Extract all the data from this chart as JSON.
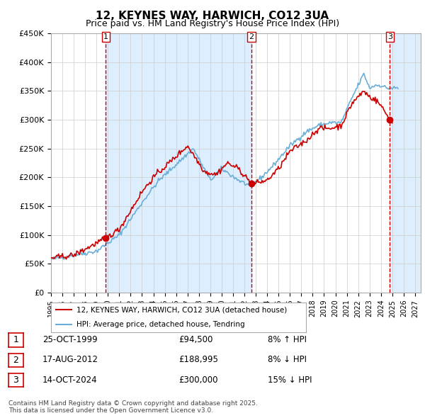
{
  "title": "12, KEYNES WAY, HARWICH, CO12 3UA",
  "subtitle": "Price paid vs. HM Land Registry's House Price Index (HPI)",
  "legend_line1": "12, KEYNES WAY, HARWICH, CO12 3UA (detached house)",
  "legend_line2": "HPI: Average price, detached house, Tendring",
  "footer": "Contains HM Land Registry data © Crown copyright and database right 2025.\nThis data is licensed under the Open Government Licence v3.0.",
  "transactions": [
    {
      "num": 1,
      "date": "25-OCT-1999",
      "price": 94500,
      "pct": "8%",
      "dir": "↑",
      "year": 1999.82
    },
    {
      "num": 2,
      "date": "17-AUG-2012",
      "price": 188995,
      "pct": "8%",
      "dir": "↓",
      "year": 2012.63
    },
    {
      "num": 3,
      "date": "14-OCT-2024",
      "price": 300000,
      "pct": "15%",
      "dir": "↓",
      "year": 2024.79
    }
  ],
  "hpi_color": "#6baed6",
  "price_color": "#cc0000",
  "bg_color": "#ffffff",
  "plot_bg_color": "#ffffff",
  "grid_color": "#cccccc",
  "shade_color": "#ddeeff",
  "vline_color": "#cc0000",
  "ylim": [
    0,
    450000
  ],
  "yticks": [
    0,
    50000,
    100000,
    150000,
    200000,
    250000,
    300000,
    350000,
    400000,
    450000
  ],
  "xlim_start": 1995.0,
  "xlim_end": 2027.5,
  "hpi_anchors": [
    [
      1995.0,
      58000
    ],
    [
      1999.0,
      72000
    ],
    [
      2001.0,
      100000
    ],
    [
      2003.5,
      170000
    ],
    [
      2004.5,
      195000
    ],
    [
      2007.5,
      250000
    ],
    [
      2009.0,
      195000
    ],
    [
      2010.0,
      215000
    ],
    [
      2011.5,
      195000
    ],
    [
      2012.5,
      185000
    ],
    [
      2013.5,
      200000
    ],
    [
      2014.5,
      220000
    ],
    [
      2016.0,
      255000
    ],
    [
      2017.5,
      280000
    ],
    [
      2018.5,
      290000
    ],
    [
      2019.5,
      295000
    ],
    [
      2020.5,
      295000
    ],
    [
      2021.5,
      340000
    ],
    [
      2022.5,
      380000
    ],
    [
      2023.0,
      355000
    ],
    [
      2023.5,
      360000
    ],
    [
      2024.0,
      360000
    ],
    [
      2024.5,
      355000
    ],
    [
      2025.0,
      355000
    ]
  ],
  "price_anchors": [
    [
      1995.0,
      60000
    ],
    [
      1997.0,
      65000
    ],
    [
      1999.82,
      94500
    ],
    [
      2001.0,
      110000
    ],
    [
      2003.0,
      175000
    ],
    [
      2004.0,
      200000
    ],
    [
      2007.0,
      255000
    ],
    [
      2008.5,
      210000
    ],
    [
      2009.5,
      205000
    ],
    [
      2010.5,
      225000
    ],
    [
      2011.5,
      215000
    ],
    [
      2012.63,
      188995
    ],
    [
      2013.0,
      190000
    ],
    [
      2014.0,
      195000
    ],
    [
      2015.0,
      215000
    ],
    [
      2016.0,
      245000
    ],
    [
      2017.5,
      265000
    ],
    [
      2018.5,
      285000
    ],
    [
      2019.5,
      285000
    ],
    [
      2020.5,
      290000
    ],
    [
      2021.5,
      330000
    ],
    [
      2022.5,
      350000
    ],
    [
      2023.0,
      340000
    ],
    [
      2023.5,
      335000
    ],
    [
      2024.0,
      325000
    ],
    [
      2024.79,
      300000
    ],
    [
      2025.0,
      295000
    ]
  ]
}
